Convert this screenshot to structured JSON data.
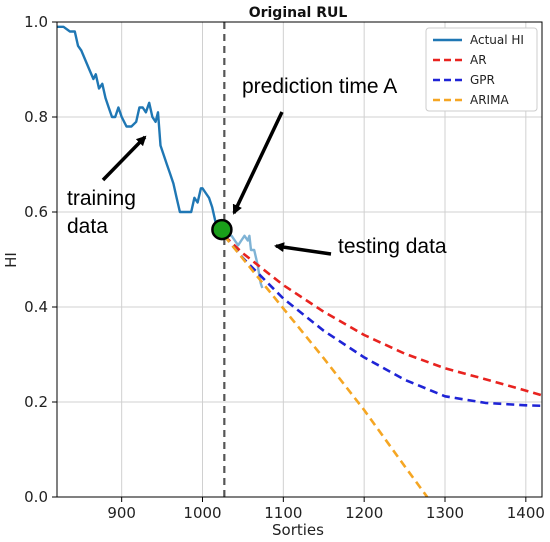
{
  "chart_data": {
    "type": "line",
    "title": "Original RUL",
    "xlabel": "Sorties",
    "ylabel": "HI",
    "xlim": [
      820,
      1420
    ],
    "ylim": [
      0.0,
      1.0
    ],
    "grid": true,
    "legend_position": "top-right",
    "x_ticks": [
      900,
      1000,
      1100,
      1200,
      1300,
      1400
    ],
    "y_ticks": [
      0.0,
      0.2,
      0.4,
      0.6,
      0.8,
      1.0
    ],
    "prediction_time": 1027,
    "prediction_point": {
      "x": 1024,
      "y": 0.563
    },
    "series": [
      {
        "name": "Actual HI",
        "style": "solid",
        "color": "#1f77b4",
        "x": [
          820,
          828,
          836,
          842,
          846,
          850,
          855,
          860,
          865,
          868,
          872,
          876,
          880,
          884,
          888,
          892,
          896,
          900,
          906,
          912,
          918,
          922,
          926,
          930,
          934,
          938,
          942,
          945,
          948,
          952,
          956,
          960,
          964,
          968,
          972,
          976,
          980,
          986,
          990,
          994,
          998,
          1000,
          1004,
          1008,
          1012,
          1016,
          1020,
          1024
        ],
        "y": [
          0.99,
          0.99,
          0.98,
          0.98,
          0.95,
          0.94,
          0.92,
          0.9,
          0.88,
          0.89,
          0.86,
          0.87,
          0.84,
          0.82,
          0.8,
          0.8,
          0.82,
          0.8,
          0.78,
          0.78,
          0.79,
          0.82,
          0.82,
          0.81,
          0.83,
          0.8,
          0.79,
          0.81,
          0.74,
          0.72,
          0.7,
          0.68,
          0.66,
          0.63,
          0.6,
          0.6,
          0.6,
          0.6,
          0.63,
          0.62,
          0.65,
          0.65,
          0.64,
          0.63,
          0.61,
          0.58,
          0.58,
          0.58
        ]
      },
      {
        "name": "Actual HI (testing)",
        "style": "solid",
        "color": "#7fb3d5",
        "x": [
          1024,
          1030,
          1036,
          1040,
          1044,
          1048,
          1052,
          1056,
          1058,
          1060,
          1064,
          1068,
          1072,
          1074
        ],
        "y": [
          0.56,
          0.55,
          0.55,
          0.54,
          0.53,
          0.54,
          0.55,
          0.54,
          0.55,
          0.52,
          0.52,
          0.49,
          0.45,
          0.44
        ]
      },
      {
        "name": "AR",
        "style": "dashed",
        "color": "#e8231f",
        "x": [
          1027,
          1050,
          1100,
          1150,
          1200,
          1250,
          1300,
          1350,
          1400,
          1420
        ],
        "y": [
          0.55,
          0.513,
          0.446,
          0.39,
          0.341,
          0.302,
          0.271,
          0.248,
          0.224,
          0.214
        ]
      },
      {
        "name": "GPR",
        "style": "dashed",
        "color": "#1f24d6",
        "x": [
          1027,
          1050,
          1100,
          1150,
          1200,
          1250,
          1300,
          1350,
          1400,
          1420
        ],
        "y": [
          0.55,
          0.503,
          0.418,
          0.35,
          0.294,
          0.247,
          0.212,
          0.198,
          0.193,
          0.192
        ]
      },
      {
        "name": "ARIMA",
        "style": "dashed",
        "color": "#f5a623",
        "x": [
          1027,
          1100,
          1150,
          1200,
          1250,
          1278
        ],
        "y": [
          0.55,
          0.397,
          0.292,
          0.183,
          0.065,
          0.0
        ]
      }
    ],
    "annotations": [
      {
        "text": "prediction time A"
      },
      {
        "text": "training\ndata"
      },
      {
        "text": "testing data"
      }
    ]
  }
}
